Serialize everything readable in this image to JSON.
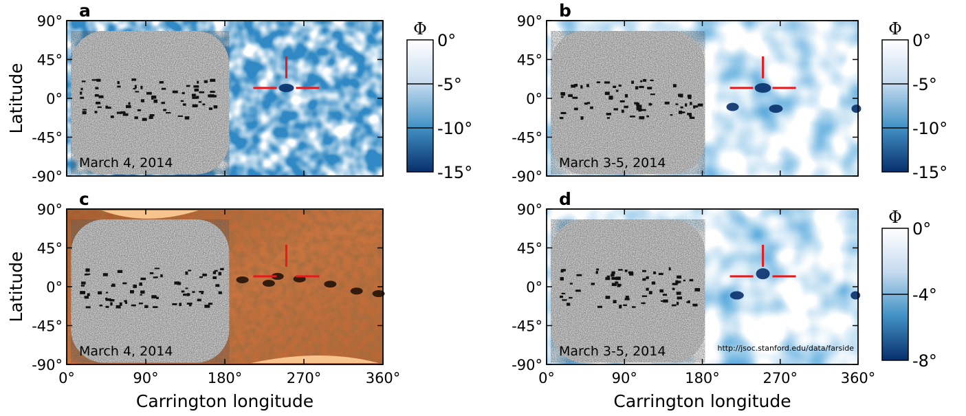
{
  "chart_data": [
    {
      "type": "heatmap",
      "panel": "a",
      "date": "March 4, 2014",
      "ylabel": "Latitude",
      "xlabel": "",
      "xlim": [
        0,
        360
      ],
      "ylim": [
        -90,
        90
      ],
      "xticks": [],
      "yticks": [
        "90°",
        "45°",
        "0°",
        "-45°",
        "-90°"
      ],
      "background": "far-side seismic phase map (blue)",
      "crosshair": {
        "lon": 250,
        "lat": 12
      },
      "colorbar": {
        "title": "Φ",
        "ticks": [
          "0°",
          "-5°",
          "-10°",
          "-15°"
        ],
        "range": [
          -15,
          0
        ]
      }
    },
    {
      "type": "heatmap",
      "panel": "b",
      "date": "March 3-5, 2014",
      "ylabel": "",
      "xlabel": "",
      "xlim": [
        0,
        360
      ],
      "ylim": [
        -90,
        90
      ],
      "xticks": [],
      "yticks": [
        "90°",
        "45°",
        "0°",
        "-45°",
        "-90°"
      ],
      "background": "far-side seismic phase map averaged (blue)",
      "crosshair": {
        "lon": 250,
        "lat": 12
      },
      "colorbar": {
        "title": "Φ",
        "ticks": [
          "0°",
          "-5°",
          "-10°",
          "-15°"
        ],
        "range": [
          -15,
          0
        ]
      }
    },
    {
      "type": "heatmap",
      "panel": "c",
      "date": "March 4, 2014",
      "ylabel": "Latitude",
      "xlabel": "Carrington longitude",
      "xlim": [
        0,
        360
      ],
      "ylim": [
        -90,
        90
      ],
      "xticks": [
        "0°",
        "90°",
        "180°",
        "270°",
        "360°"
      ],
      "yticks": [
        "90°",
        "45°",
        "0°",
        "-45°",
        "-90°"
      ],
      "background": "EUV image of far side (orange)",
      "crosshair": {
        "lon": 250,
        "lat": 12
      },
      "colorbar": null
    },
    {
      "type": "heatmap",
      "panel": "d",
      "date": "March 3-5, 2014",
      "ylabel": "",
      "xlabel": "Carrington longitude",
      "xlim": [
        0,
        360
      ],
      "ylim": [
        -90,
        90
      ],
      "xticks": [
        "0°",
        "90°",
        "180°",
        "270°",
        "360°"
      ],
      "yticks": [
        "90°",
        "45°",
        "0°",
        "-45°",
        "-90°"
      ],
      "background": "far-side seismic phase map (blue)",
      "crosshair": {
        "lon": 250,
        "lat": 12
      },
      "url": "http://jsoc.stanford.edu/data/farside",
      "colorbar": {
        "title": "Φ",
        "ticks": [
          "0°",
          "-4°",
          "-8°"
        ],
        "range": [
          -8,
          0
        ]
      }
    }
  ],
  "colors": {
    "crosshair": "#e8191c",
    "blue_dark": "#08306b",
    "blue_mid": "#2171b5",
    "blue_light": "#c6dbef",
    "orange_dark": "#7a3a14",
    "orange_mid": "#c9743f",
    "orange_light": "#f6c48c"
  }
}
